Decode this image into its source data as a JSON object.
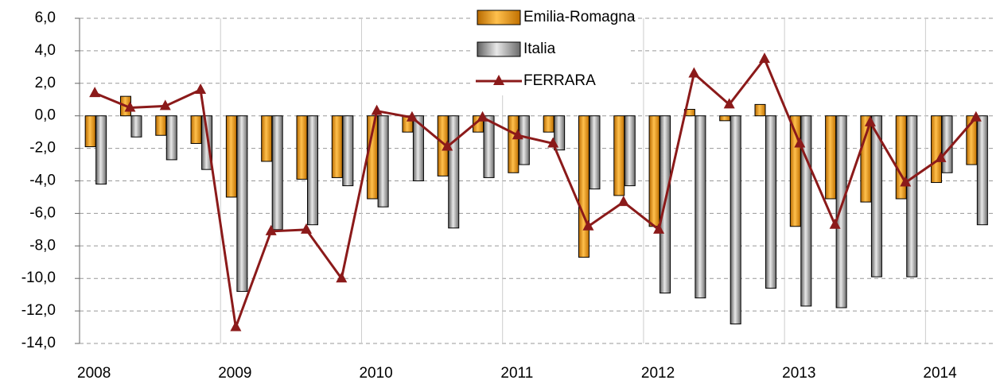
{
  "chart_data": {
    "type": "bar_line",
    "categories": [
      "2008",
      null,
      null,
      null,
      "2009",
      null,
      null,
      null,
      "2010",
      null,
      null,
      null,
      "2011",
      null,
      null,
      null,
      "2012",
      null,
      null,
      null,
      "2013",
      null,
      null,
      null,
      "2014",
      null
    ],
    "series": [
      {
        "name": "Emilia-Romagna",
        "type": "bar",
        "color": "#f59a00",
        "values": [
          -1.9,
          1.2,
          -1.2,
          -1.7,
          -5.0,
          -2.8,
          -3.9,
          -3.8,
          -5.1,
          -1.0,
          -3.7,
          -1.0,
          -3.5,
          -1.0,
          -8.7,
          -4.9,
          -6.8,
          0.4,
          -0.3,
          0.7,
          -6.8,
          -5.1,
          -5.3,
          -5.1,
          -4.1,
          -3.0
        ]
      },
      {
        "name": "Italia",
        "type": "bar",
        "color": "#a0a0a0",
        "values": [
          -4.2,
          -1.3,
          -2.7,
          -3.3,
          -10.8,
          -7.0,
          -6.7,
          -4.3,
          -5.6,
          -4.0,
          -6.9,
          -3.8,
          -3.0,
          -2.1,
          -4.5,
          -4.3,
          -10.9,
          -11.2,
          -12.8,
          -10.6,
          -11.7,
          -11.8,
          -9.9,
          -9.9,
          -3.5,
          -6.7
        ]
      },
      {
        "name": "FERRARA",
        "type": "line",
        "color": "#8b1a1a",
        "values": [
          1.4,
          0.5,
          0.6,
          1.6,
          -13.0,
          -7.1,
          -7.0,
          -10.0,
          0.3,
          -0.1,
          -1.9,
          -0.1,
          -1.2,
          -1.7,
          -6.8,
          -5.3,
          -7.0,
          2.6,
          0.7,
          3.5,
          -1.7,
          -6.7,
          -0.4,
          -4.1,
          -2.6,
          -0.1
        ]
      }
    ],
    "ylim": [
      -14,
      6
    ],
    "yticks": [
      {
        "value": -14,
        "label": "-14,0"
      },
      {
        "value": -12,
        "label": "-12,0"
      },
      {
        "value": -10,
        "label": "-10,0"
      },
      {
        "value": -8,
        "label": "-8,0"
      },
      {
        "value": -6,
        "label": "-6,0"
      },
      {
        "value": -4,
        "label": "-4,0"
      },
      {
        "value": -2,
        "label": "-2,0"
      },
      {
        "value": 0,
        "label": "0,0"
      },
      {
        "value": 2,
        "label": "2,0"
      },
      {
        "value": 4,
        "label": "4,0"
      },
      {
        "value": 6,
        "label": "6,0"
      }
    ],
    "grid": true,
    "legend": "top"
  }
}
